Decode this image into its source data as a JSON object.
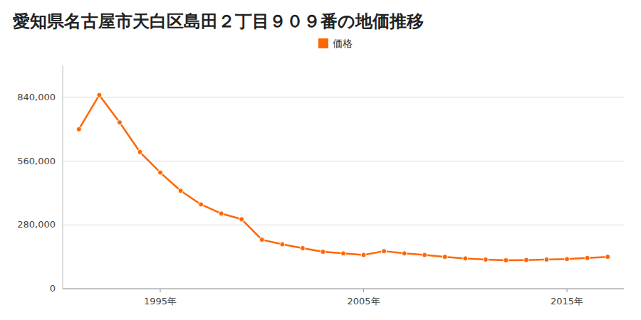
{
  "chart_data": {
    "type": "line",
    "title": "愛知県名古屋市天白区島田２丁目９０９番の地価推移",
    "x": [
      1991,
      1992,
      1993,
      1994,
      1995,
      1996,
      1997,
      1998,
      1999,
      2000,
      2001,
      2002,
      2003,
      2004,
      2005,
      2006,
      2007,
      2008,
      2009,
      2010,
      2011,
      2012,
      2013,
      2014,
      2015,
      2016,
      2017
    ],
    "series": [
      {
        "name": "価格",
        "color": "#ff6600",
        "marker": "circle",
        "values": [
          700000,
          850000,
          730000,
          600000,
          510000,
          430000,
          370000,
          330000,
          305000,
          215000,
          195000,
          178000,
          162000,
          155000,
          148000,
          165000,
          155000,
          148000,
          140000,
          133000,
          128000,
          125000,
          126000,
          128000,
          130000,
          135000,
          140000
        ]
      }
    ],
    "xlim": [
      1990.2,
      2017.8
    ],
    "xticks": [
      {
        "value": 1995,
        "label": "1995年"
      },
      {
        "value": 2005,
        "label": "2005年"
      },
      {
        "value": 2015,
        "label": "2015年"
      }
    ],
    "ylim": [
      0,
      980000
    ],
    "yticks": [
      0,
      {
        "value": 280000,
        "label": "280,000"
      },
      {
        "value": 560000,
        "label": "560,000"
      },
      {
        "value": 840000,
        "label": "840,000"
      }
    ],
    "grid": true,
    "legend": "top"
  }
}
